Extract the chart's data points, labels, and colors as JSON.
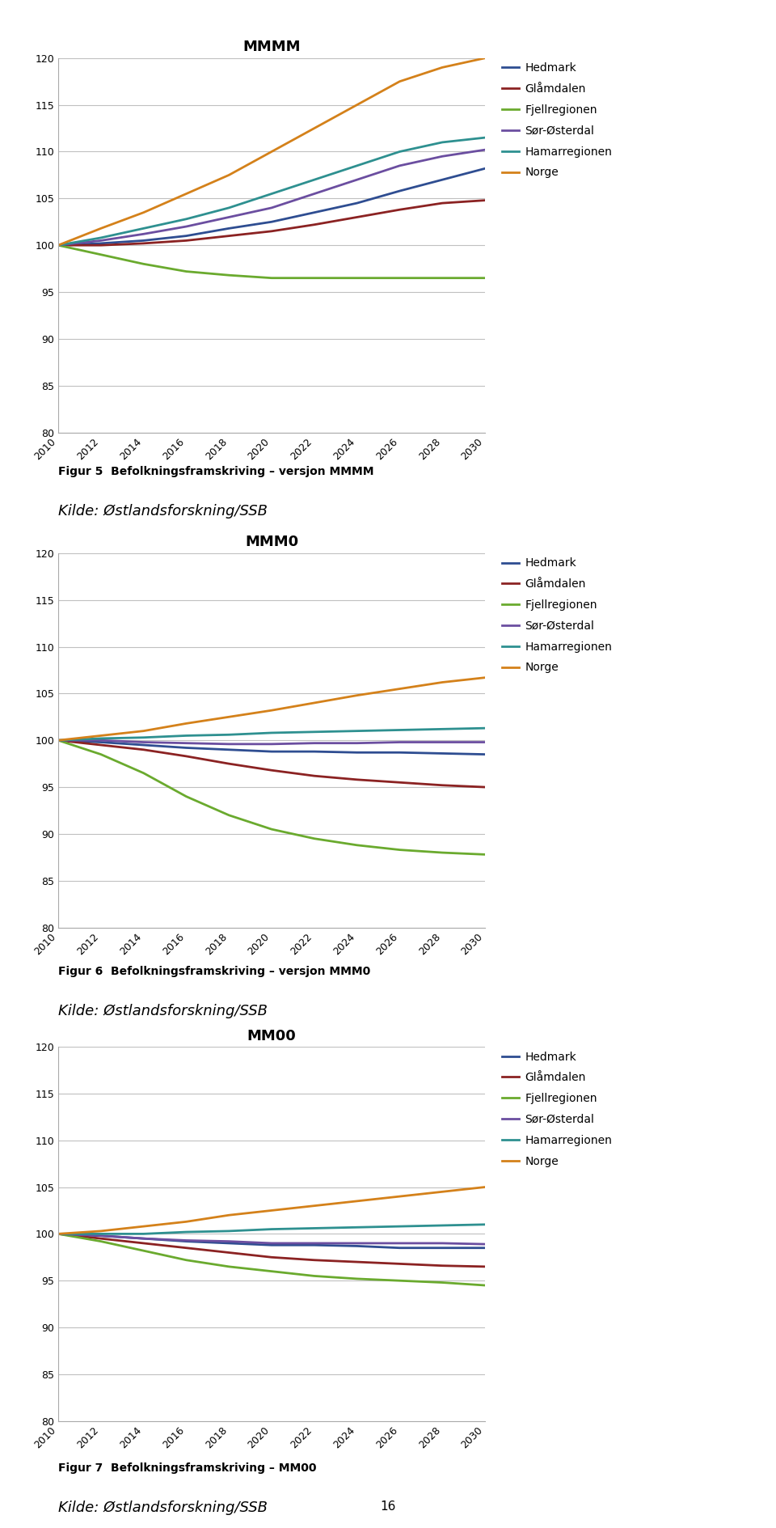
{
  "years": [
    2010,
    2012,
    2014,
    2016,
    2018,
    2020,
    2022,
    2024,
    2026,
    2028,
    2030
  ],
  "charts": [
    {
      "title": "MMMM",
      "caption": "Figur 5  Befolkningsframskriving – versjon MMMM",
      "source": "Kilde: Østlandsforskning/SSB",
      "series": {
        "Hedmark": [
          100,
          100.2,
          100.5,
          101.0,
          101.8,
          102.5,
          103.5,
          104.5,
          105.8,
          107.0,
          108.2
        ],
        "Glåmdalen": [
          100,
          100.0,
          100.2,
          100.5,
          101.0,
          101.5,
          102.2,
          103.0,
          103.8,
          104.5,
          104.8
        ],
        "Fjellregionen": [
          100,
          99.0,
          98.0,
          97.2,
          96.8,
          96.5,
          96.5,
          96.5,
          96.5,
          96.5,
          96.5
        ],
        "Sør-Østerdal": [
          100,
          100.5,
          101.2,
          102.0,
          103.0,
          104.0,
          105.5,
          107.0,
          108.5,
          109.5,
          110.2
        ],
        "Hamarregionen": [
          100,
          100.8,
          101.8,
          102.8,
          104.0,
          105.5,
          107.0,
          108.5,
          110.0,
          111.0,
          111.5
        ],
        "Norge": [
          100,
          101.8,
          103.5,
          105.5,
          107.5,
          110.0,
          112.5,
          115.0,
          117.5,
          119.0,
          120.0
        ]
      }
    },
    {
      "title": "MMM0",
      "caption": "Figur 6  Befolkningsframskriving – versjon MMM0",
      "source": "Kilde: Østlandsforskning/SSB",
      "series": {
        "Hedmark": [
          100,
          99.8,
          99.5,
          99.2,
          99.0,
          98.8,
          98.8,
          98.7,
          98.7,
          98.6,
          98.5
        ],
        "Glåmdalen": [
          100,
          99.5,
          99.0,
          98.3,
          97.5,
          96.8,
          96.2,
          95.8,
          95.5,
          95.2,
          95.0
        ],
        "Fjellregionen": [
          100,
          98.5,
          96.5,
          94.0,
          92.0,
          90.5,
          89.5,
          88.8,
          88.3,
          88.0,
          87.8
        ],
        "Sør-Østerdal": [
          100,
          100.0,
          99.8,
          99.7,
          99.6,
          99.6,
          99.7,
          99.7,
          99.8,
          99.8,
          99.8
        ],
        "Hamarregionen": [
          100,
          100.2,
          100.3,
          100.5,
          100.6,
          100.8,
          100.9,
          101.0,
          101.1,
          101.2,
          101.3
        ],
        "Norge": [
          100,
          100.5,
          101.0,
          101.8,
          102.5,
          103.2,
          104.0,
          104.8,
          105.5,
          106.2,
          106.7
        ]
      }
    },
    {
      "title": "MM00",
      "caption": "Figur 7  Befolkningsframskriving – MM00",
      "source": "Kilde: Østlandsforskning/SSB",
      "series": {
        "Hedmark": [
          100,
          99.8,
          99.5,
          99.2,
          99.0,
          98.8,
          98.8,
          98.7,
          98.5,
          98.5,
          98.5
        ],
        "Glåmdalen": [
          100,
          99.5,
          99.0,
          98.5,
          98.0,
          97.5,
          97.2,
          97.0,
          96.8,
          96.6,
          96.5
        ],
        "Fjellregionen": [
          100,
          99.2,
          98.2,
          97.2,
          96.5,
          96.0,
          95.5,
          95.2,
          95.0,
          94.8,
          94.5
        ],
        "Sør-Østerdal": [
          100,
          99.8,
          99.5,
          99.3,
          99.2,
          99.0,
          99.0,
          99.0,
          99.0,
          99.0,
          98.9
        ],
        "Hamarregionen": [
          100,
          100.0,
          100.0,
          100.2,
          100.3,
          100.5,
          100.6,
          100.7,
          100.8,
          100.9,
          101.0
        ],
        "Norge": [
          100,
          100.3,
          100.8,
          101.3,
          102.0,
          102.5,
          103.0,
          103.5,
          104.0,
          104.5,
          105.0
        ]
      }
    }
  ],
  "colors": {
    "Hedmark": "#2e4d91",
    "Glåmdalen": "#8b2222",
    "Fjellregionen": "#6aaa2e",
    "Sør-Østerdal": "#6b4ea0",
    "Hamarregionen": "#2e9090",
    "Norge": "#d4811a"
  },
  "ylim": [
    80,
    120
  ],
  "yticks": [
    80,
    85,
    90,
    95,
    100,
    105,
    110,
    115,
    120
  ],
  "line_width": 2.0,
  "background_color": "#ffffff",
  "grid_color": "#c0c0c0",
  "caption_fontsize": 10,
  "source_fontsize": 13,
  "title_fontsize": 13,
  "tick_fontsize": 9,
  "legend_fontsize": 10
}
